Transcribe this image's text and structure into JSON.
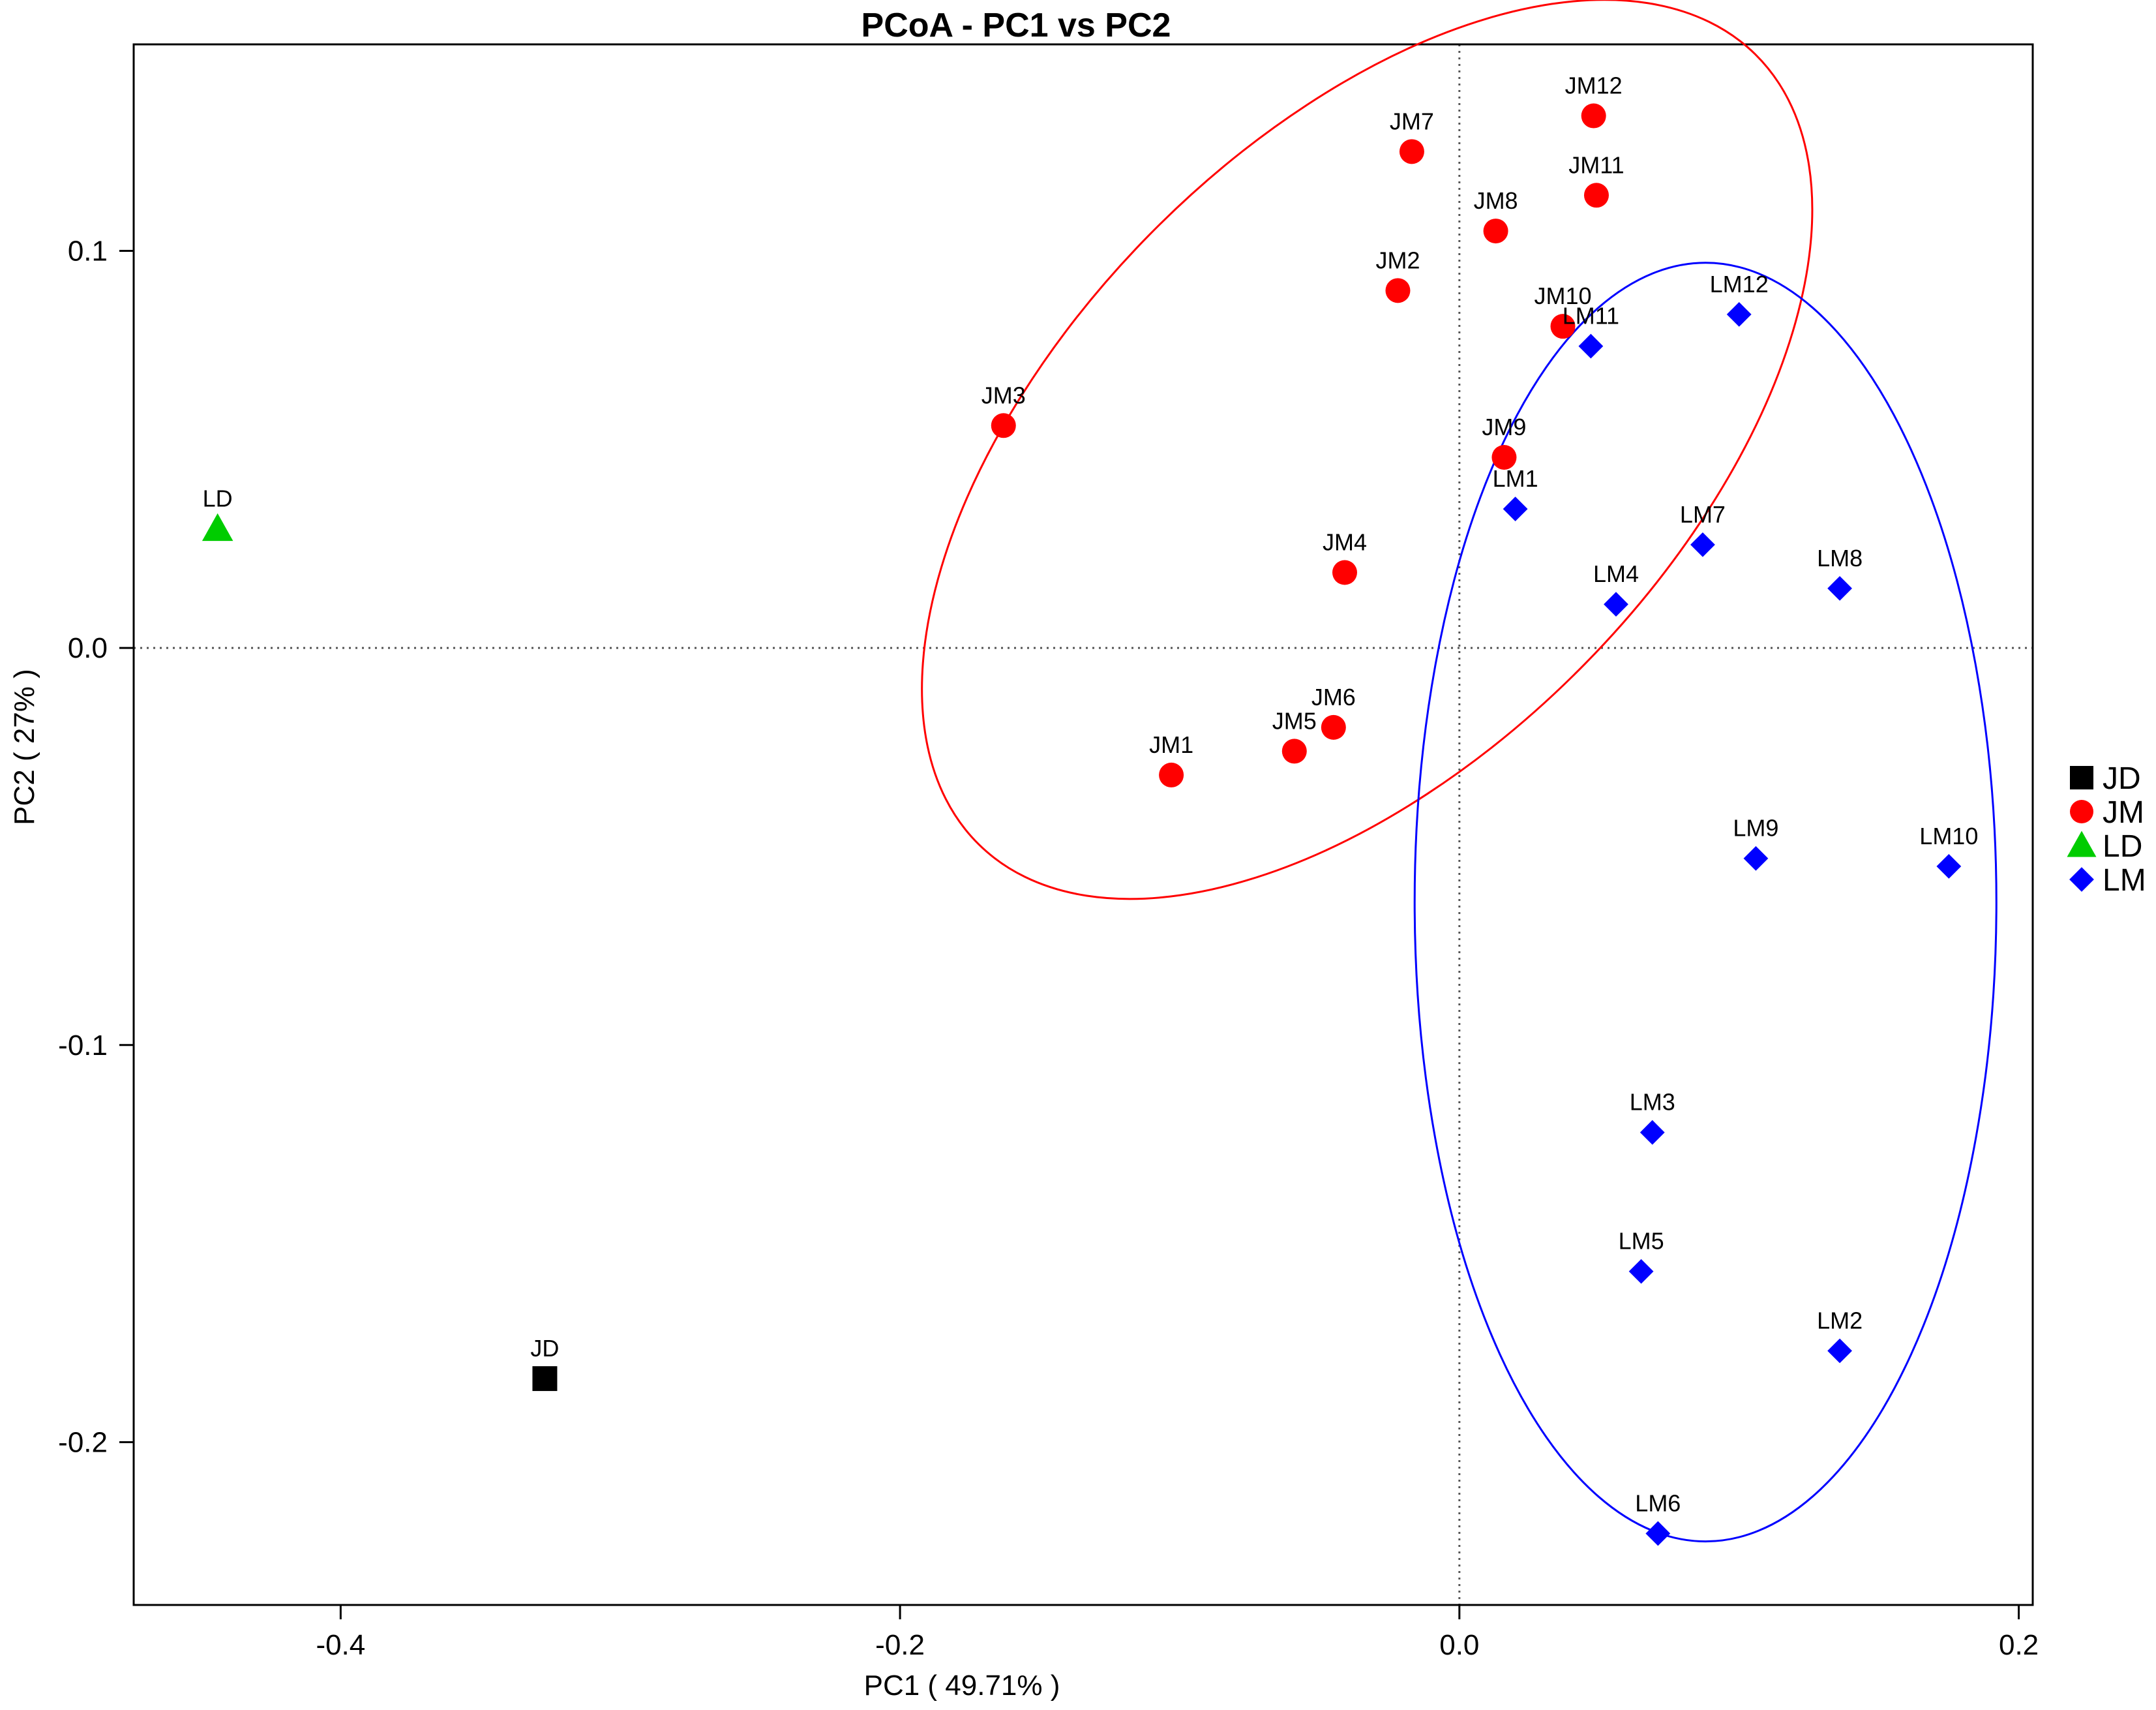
{
  "chart_data": {
    "type": "scatter",
    "title": "PCoA - PC1 vs PC2",
    "xlabel": "PC1 ( 49.71% )",
    "ylabel": "PC2 ( 27% )",
    "xlim": [
      -0.474,
      0.205
    ],
    "ylim": [
      -0.241,
      0.152
    ],
    "xticks": [
      {
        "value": -0.4,
        "label": "-0.4"
      },
      {
        "value": -0.2,
        "label": "-0.2"
      },
      {
        "value": 0.0,
        "label": "0.0"
      },
      {
        "value": 0.2,
        "label": "0.2"
      }
    ],
    "yticks": [
      {
        "value": -0.2,
        "label": "-0.2"
      },
      {
        "value": -0.1,
        "label": "-0.1"
      },
      {
        "value": 0.0,
        "label": "0.0"
      },
      {
        "value": 0.1,
        "label": "0.1"
      }
    ],
    "zero_lines": true,
    "legend_position": "right",
    "series": [
      {
        "name": "JD",
        "shape": "square",
        "color": "#000000",
        "points": [
          {
            "label": "JD",
            "x": -0.327,
            "y": -0.184
          }
        ]
      },
      {
        "name": "JM",
        "shape": "circle",
        "color": "#ff0000",
        "points": [
          {
            "label": "JM1",
            "x": -0.103,
            "y": -0.032
          },
          {
            "label": "JM2",
            "x": -0.022,
            "y": 0.09
          },
          {
            "label": "JM3",
            "x": -0.163,
            "y": 0.056
          },
          {
            "label": "JM4",
            "x": -0.041,
            "y": 0.019
          },
          {
            "label": "JM5",
            "x": -0.059,
            "y": -0.026
          },
          {
            "label": "JM6",
            "x": -0.045,
            "y": -0.02
          },
          {
            "label": "JM7",
            "x": -0.017,
            "y": 0.125
          },
          {
            "label": "JM8",
            "x": 0.013,
            "y": 0.105
          },
          {
            "label": "JM9",
            "x": 0.016,
            "y": 0.048
          },
          {
            "label": "JM10",
            "x": 0.037,
            "y": 0.081
          },
          {
            "label": "JM11",
            "x": 0.049,
            "y": 0.114
          },
          {
            "label": "JM12",
            "x": 0.048,
            "y": 0.134
          }
        ]
      },
      {
        "name": "LD",
        "shape": "triangle",
        "color": "#00cc00",
        "points": [
          {
            "label": "LD",
            "x": -0.444,
            "y": 0.03
          }
        ]
      },
      {
        "name": "LM",
        "shape": "diamond",
        "color": "#0000ff",
        "points": [
          {
            "label": "LM1",
            "x": 0.02,
            "y": 0.035
          },
          {
            "label": "LM2",
            "x": 0.136,
            "y": -0.177
          },
          {
            "label": "LM3",
            "x": 0.069,
            "y": -0.122
          },
          {
            "label": "LM4",
            "x": 0.056,
            "y": 0.011
          },
          {
            "label": "LM5",
            "x": 0.065,
            "y": -0.157
          },
          {
            "label": "LM6",
            "x": 0.071,
            "y": -0.223
          },
          {
            "label": "LM7",
            "x": 0.087,
            "y": 0.026
          },
          {
            "label": "LM8",
            "x": 0.136,
            "y": 0.015
          },
          {
            "label": "LM9",
            "x": 0.106,
            "y": -0.053
          },
          {
            "label": "LM10",
            "x": 0.175,
            "y": -0.055
          },
          {
            "label": "LM11",
            "x": 0.047,
            "y": 0.076
          },
          {
            "label": "LM12",
            "x": 0.1,
            "y": 0.084
          }
        ]
      }
    ],
    "ellipses": [
      {
        "group": "JM",
        "color": "#ff0000",
        "cx": -0.033,
        "cy": 0.05,
        "rx": 0.198,
        "ry": 0.077,
        "angle_deg": 45.5
      },
      {
        "group": "LM",
        "color": "#0000ff",
        "cx": 0.088,
        "cy": -0.064,
        "rx": 0.104,
        "ry": 0.161,
        "angle_deg": 0
      }
    ]
  }
}
